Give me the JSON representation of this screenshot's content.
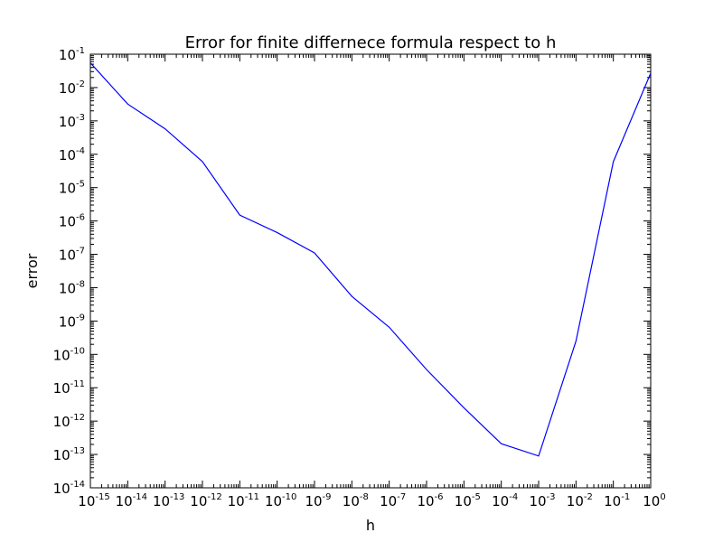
{
  "chart_data": {
    "type": "line",
    "title": "Error for finite differnece formula respect to h",
    "xlabel": "h",
    "ylabel": "error",
    "xscale": "log",
    "yscale": "log",
    "xlim": [
      1e-15,
      1
    ],
    "ylim": [
      1e-14,
      0.1
    ],
    "grid": false,
    "legend": "none",
    "x_ticks": [
      {
        "value": 1e-15,
        "base": "10",
        "exp": "-15"
      },
      {
        "value": 1e-14,
        "base": "10",
        "exp": "-14"
      },
      {
        "value": 1e-13,
        "base": "10",
        "exp": "-13"
      },
      {
        "value": 1e-12,
        "base": "10",
        "exp": "-12"
      },
      {
        "value": 1e-11,
        "base": "10",
        "exp": "-11"
      },
      {
        "value": 1e-10,
        "base": "10",
        "exp": "-10"
      },
      {
        "value": 1e-09,
        "base": "10",
        "exp": "-9"
      },
      {
        "value": 1e-08,
        "base": "10",
        "exp": "-8"
      },
      {
        "value": 1e-07,
        "base": "10",
        "exp": "-7"
      },
      {
        "value": 1e-06,
        "base": "10",
        "exp": "-6"
      },
      {
        "value": 1e-05,
        "base": "10",
        "exp": "-5"
      },
      {
        "value": 0.0001,
        "base": "10",
        "exp": "-4"
      },
      {
        "value": 0.001,
        "base": "10",
        "exp": "-3"
      },
      {
        "value": 0.01,
        "base": "10",
        "exp": "-2"
      },
      {
        "value": 0.1,
        "base": "10",
        "exp": "-1"
      },
      {
        "value": 1,
        "base": "10",
        "exp": "0"
      }
    ],
    "y_ticks": [
      {
        "value": 1e-14,
        "base": "10",
        "exp": "-14"
      },
      {
        "value": 1e-13,
        "base": "10",
        "exp": "-13"
      },
      {
        "value": 1e-12,
        "base": "10",
        "exp": "-12"
      },
      {
        "value": 1e-11,
        "base": "10",
        "exp": "-11"
      },
      {
        "value": 1e-10,
        "base": "10",
        "exp": "-10"
      },
      {
        "value": 1e-09,
        "base": "10",
        "exp": "-9"
      },
      {
        "value": 1e-08,
        "base": "10",
        "exp": "-8"
      },
      {
        "value": 1e-07,
        "base": "10",
        "exp": "-7"
      },
      {
        "value": 1e-06,
        "base": "10",
        "exp": "-6"
      },
      {
        "value": 1e-05,
        "base": "10",
        "exp": "-5"
      },
      {
        "value": 0.0001,
        "base": "10",
        "exp": "-4"
      },
      {
        "value": 0.001,
        "base": "10",
        "exp": "-3"
      },
      {
        "value": 0.01,
        "base": "10",
        "exp": "-2"
      },
      {
        "value": 0.1,
        "base": "10",
        "exp": "-1"
      }
    ],
    "series": [
      {
        "color": "#0000ff",
        "x": [
          1e-15,
          1e-14,
          1e-13,
          1e-12,
          1e-11,
          1e-10,
          1e-09,
          1e-08,
          1e-07,
          1e-06,
          1e-05,
          0.0001,
          0.001,
          0.01,
          0.1,
          1
        ],
        "y": [
          0.055,
          0.0032,
          0.00058,
          6e-05,
          1.5e-06,
          4.5e-07,
          1.1e-07,
          5.5e-09,
          6.5e-10,
          3.5e-11,
          2.5e-12,
          2.1e-13,
          9e-14,
          2.5e-10,
          6e-05,
          0.027
        ]
      }
    ]
  }
}
